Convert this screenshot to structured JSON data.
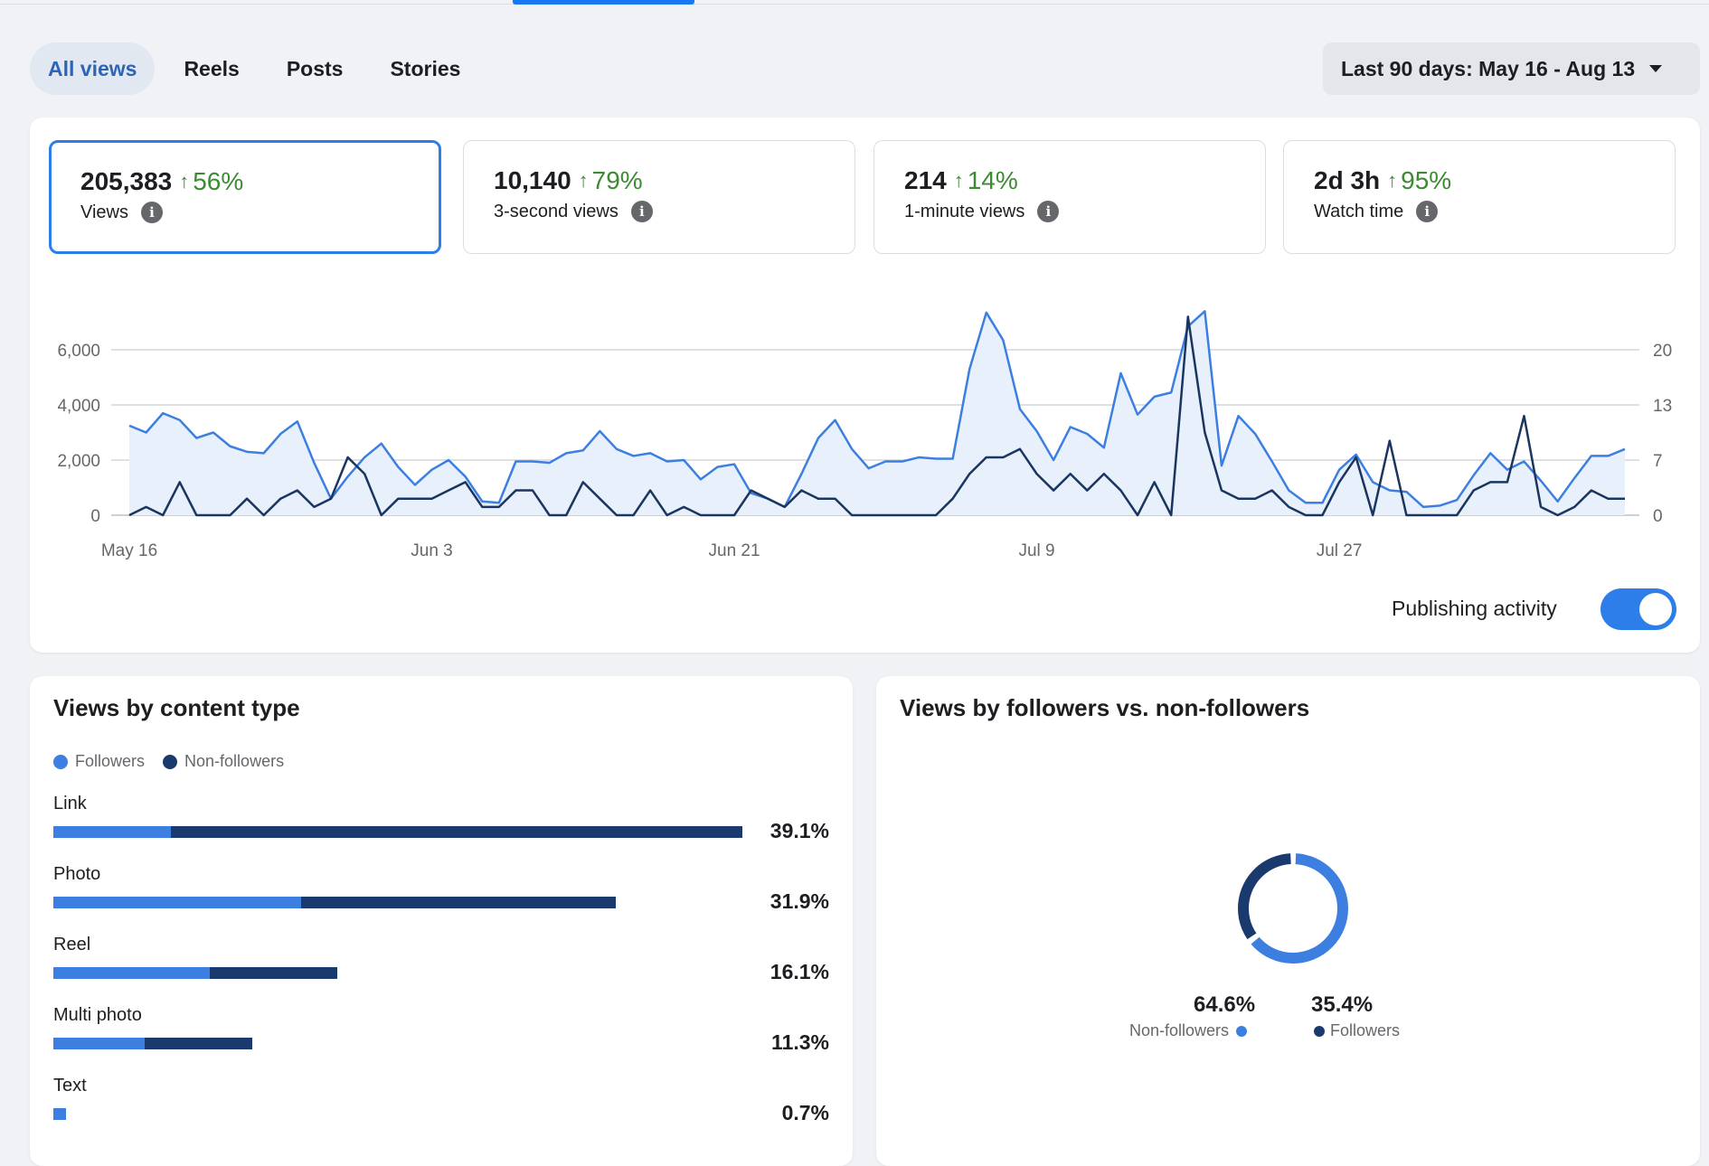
{
  "tabs": [
    {
      "label": "All views",
      "active": true
    },
    {
      "label": "Reels",
      "active": false
    },
    {
      "label": "Posts",
      "active": false
    },
    {
      "label": "Stories",
      "active": false
    }
  ],
  "date_range": {
    "label": "Last 90 days: May 16 - Aug 13"
  },
  "metrics": [
    {
      "value": "205,383",
      "delta": "56%",
      "label": "Views",
      "selected": true
    },
    {
      "value": "10,140",
      "delta": "79%",
      "label": "3-second views",
      "selected": false
    },
    {
      "value": "214",
      "delta": "14%",
      "label": "1-minute views",
      "selected": false
    },
    {
      "value": "2d 3h",
      "delta": "95%",
      "label": "Watch time",
      "selected": false
    }
  ],
  "publishing_toggle": {
    "label": "Publishing activity",
    "on": true
  },
  "colors": {
    "accent": "#2d7ee8",
    "views_line": "#3d7fe0",
    "activity_line": "#1a3560",
    "positive": "#3c8a32"
  },
  "chart_data": {
    "type": "line",
    "title": "",
    "x_tick_labels": [
      "May 16",
      "Jun 3",
      "Jun 21",
      "Jul 9",
      "Jul 27"
    ],
    "x_tick_index": [
      0,
      18,
      36,
      54,
      72
    ],
    "y_left_ticks": [
      "0",
      "2,000",
      "4,000",
      "6,000"
    ],
    "y_left_range": [
      0,
      6000
    ],
    "y_right_ticks": [
      "0",
      "7",
      "13",
      "20"
    ],
    "y_right_range": [
      0,
      20
    ],
    "grid": true,
    "series": [
      {
        "axis": "left",
        "area": true,
        "values": [
          3250,
          3000,
          3700,
          3450,
          2800,
          3000,
          2500,
          2300,
          2250,
          2950,
          3400,
          1900,
          600,
          1400,
          2100,
          2600,
          1750,
          1100,
          1650,
          2000,
          1400,
          500,
          450,
          1950,
          1950,
          1900,
          2250,
          2350,
          3050,
          2400,
          2150,
          2250,
          1950,
          2000,
          1300,
          1750,
          1850,
          800,
          600,
          300,
          1500,
          2800,
          3450,
          2400,
          1700,
          1950,
          1950,
          2100,
          2050,
          2050,
          5300,
          7350,
          6350,
          3850,
          3050,
          2000,
          3200,
          2950,
          2450,
          5150,
          3650,
          4300,
          4450,
          6850,
          7400,
          1800,
          3600,
          2950,
          1950,
          900,
          450,
          450,
          1650,
          2200,
          1200,
          900,
          850,
          300,
          350,
          550,
          1450,
          2250,
          1650,
          1950,
          1250,
          500,
          1350,
          2150,
          2150,
          2400
        ]
      },
      {
        "axis": "right",
        "area": false,
        "values": [
          0,
          1,
          0,
          4,
          0,
          0,
          0,
          2,
          0,
          2,
          3,
          1,
          2,
          7,
          5,
          0,
          2,
          2,
          2,
          3,
          4,
          1,
          1,
          3,
          3,
          0,
          0,
          4,
          2,
          0,
          0,
          3,
          0,
          1,
          0,
          0,
          0,
          3,
          2,
          1,
          3,
          2,
          2,
          0,
          0,
          0,
          0,
          0,
          0,
          2,
          5,
          7,
          7,
          8,
          5,
          3,
          5,
          3,
          5,
          3,
          0,
          4,
          0,
          24,
          10,
          3,
          2,
          2,
          3,
          1,
          0,
          0,
          4,
          7,
          0,
          9,
          0,
          0,
          0,
          0,
          3,
          4,
          4,
          12,
          1,
          0,
          1,
          3,
          2,
          2
        ]
      }
    ]
  },
  "content_type": {
    "title": "Views by content type",
    "legend": [
      {
        "label": "Followers",
        "color": "#3d7fe0"
      },
      {
        "label": "Non-followers",
        "color": "#1a3a6e"
      }
    ],
    "rows": [
      {
        "label": "Link",
        "pct": "39.1%",
        "value": 39.1,
        "followers_share": 0.17
      },
      {
        "label": "Photo",
        "pct": "31.9%",
        "value": 31.9,
        "followers_share": 0.44
      },
      {
        "label": "Reel",
        "pct": "16.1%",
        "value": 16.1,
        "followers_share": 0.55
      },
      {
        "label": "Multi photo",
        "pct": "11.3%",
        "value": 11.3,
        "followers_share": 0.46
      },
      {
        "label": "Text",
        "pct": "0.7%",
        "value": 0.7,
        "followers_share": 1.0
      }
    ]
  },
  "followers_split": {
    "title": "Views by followers vs. non-followers",
    "non_followers": {
      "pct": "64.6%",
      "label": "Non-followers",
      "value": 64.6,
      "color": "#3d7fe0"
    },
    "followers": {
      "pct": "35.4%",
      "label": "Followers",
      "value": 35.4,
      "color": "#1a3a6e"
    }
  }
}
